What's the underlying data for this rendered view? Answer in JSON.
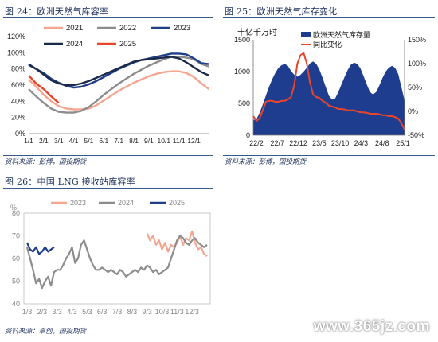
{
  "chart_data": [
    {
      "type": "line",
      "title": "图 24：欧洲天然气库容率",
      "source": "资料来源：彭博，国投期货",
      "x_ticks": [
        "1/1",
        "2/1",
        "3/1",
        "4/1",
        "5/1",
        "6/1",
        "7/1",
        "8/1",
        "9/1",
        "10/1",
        "11/1",
        "12/1"
      ],
      "y_ticks": [
        "0%",
        "20%",
        "40%",
        "60%",
        "80%",
        "100%",
        "120%"
      ],
      "ylim": [
        0,
        120
      ],
      "series": [
        {
          "name": "2021",
          "color": "#f4a690",
          "x": [
            0,
            0.5,
            1,
            1.5,
            2,
            2.5,
            3,
            3.5,
            4,
            4.5,
            5,
            5.5,
            6,
            6.5,
            7,
            7.5,
            8,
            8.5,
            9,
            9.5,
            10,
            10.5,
            11,
            11.5,
            12
          ],
          "y": [
            67,
            58,
            48,
            40,
            34,
            31,
            30,
            30,
            31,
            35,
            41,
            47,
            53,
            58,
            63,
            67,
            71,
            74,
            76,
            77,
            77,
            75,
            70,
            62,
            55
          ]
        },
        {
          "name": "2022",
          "color": "#8c8c8c",
          "x": [
            0,
            0.5,
            1,
            1.5,
            2,
            2.5,
            3,
            3.5,
            4,
            4.5,
            5,
            5.5,
            6,
            6.5,
            7,
            7.5,
            8,
            8.5,
            9,
            9.5,
            10,
            10.5,
            11,
            11.5,
            12
          ],
          "y": [
            55,
            46,
            38,
            31,
            27,
            26,
            26,
            28,
            33,
            40,
            48,
            55,
            62,
            68,
            74,
            79,
            84,
            88,
            92,
            95,
            95,
            94,
            92,
            86,
            83
          ]
        },
        {
          "name": "2023",
          "color": "#1f3f8a",
          "x": [
            0,
            0.5,
            1,
            1.5,
            2,
            2.5,
            3,
            3.5,
            4,
            4.5,
            5,
            5.5,
            6,
            6.5,
            7,
            7.5,
            8,
            8.5,
            9,
            9.5,
            10,
            10.5,
            11,
            11.5,
            12
          ],
          "y": [
            86,
            80,
            75,
            68,
            63,
            59,
            57,
            58,
            61,
            65,
            70,
            75,
            80,
            84,
            88,
            91,
            93,
            95,
            97,
            99,
            99,
            98,
            93,
            87,
            86
          ]
        },
        {
          "name": "2024",
          "color": "#1b2a4a",
          "x": [
            0,
            0.5,
            1,
            1.5,
            2,
            2.5,
            3,
            3.5,
            4,
            4.5,
            5,
            5.5,
            6,
            6.5,
            7,
            7.5,
            8,
            8.5,
            9,
            9.5,
            10,
            10.5,
            11,
            11.5,
            12
          ],
          "y": [
            85,
            80,
            73,
            66,
            62,
            60,
            60,
            62,
            65,
            69,
            73,
            77,
            81,
            85,
            89,
            91,
            92,
            93,
            94,
            95,
            93,
            88,
            82,
            76,
            72
          ]
        },
        {
          "name": "2025",
          "color": "#e8452c",
          "x": [
            0,
            0.5,
            1,
            1.5,
            2
          ],
          "y": [
            72,
            62,
            55,
            46,
            38
          ]
        }
      ]
    },
    {
      "type": "area",
      "title": "图 25：欧洲天然气库存变化",
      "source": "资料来源：彭博，国投期货",
      "unit_label": "十亿千万时",
      "x_ticks": [
        "22/2",
        "22/7",
        "22/12",
        "23/5",
        "23/10",
        "24/3",
        "24/8",
        "25/1"
      ],
      "y_left_ticks": [
        "0",
        "500",
        "1000",
        "1500"
      ],
      "y_right_ticks": [
        "-50%",
        "0%",
        "50%",
        "100%",
        "150%"
      ],
      "ylim_left": [
        0,
        1500
      ],
      "ylim_right": [
        -50,
        150
      ],
      "series": [
        {
          "name": "欧洲天然气库存量",
          "color": "#1f3d8f",
          "axis": "left",
          "x": [
            0,
            2,
            4,
            6,
            8,
            10,
            12,
            14,
            16,
            18,
            20,
            22,
            24,
            26,
            28,
            30,
            32,
            34,
            36,
            38,
            40,
            42,
            44,
            46,
            48,
            50,
            52,
            54,
            56,
            58,
            60,
            62,
            64,
            66,
            68,
            70,
            72,
            74,
            76,
            78,
            80,
            82,
            84,
            86,
            88,
            90,
            92,
            94,
            96
          ],
          "y": [
            240,
            250,
            350,
            480,
            620,
            760,
            880,
            980,
            1060,
            1100,
            1120,
            1090,
            1010,
            950,
            920,
            950,
            1000,
            1060,
            1130,
            1160,
            1120,
            1030,
            900,
            760,
            620,
            560,
            580,
            680,
            800,
            920,
            1030,
            1110,
            1140,
            1120,
            1050,
            930,
            800,
            680,
            640,
            680,
            780,
            900,
            1000,
            1060,
            1090,
            1060,
            960,
            760,
            540
          ]
        },
        {
          "name": "同比变化",
          "color": "#e8452c",
          "axis": "right",
          "x": [
            0,
            2,
            4,
            6,
            8,
            10,
            12,
            14,
            16,
            18,
            20,
            22,
            24,
            26,
            28,
            30,
            32,
            34,
            36,
            38,
            40,
            42,
            44,
            46,
            48,
            50,
            52,
            54,
            56,
            58,
            60,
            62,
            64,
            66,
            68,
            70,
            72,
            74,
            76,
            78,
            80,
            82,
            84,
            86,
            88,
            90,
            92,
            94,
            96
          ],
          "y": [
            -10,
            -20,
            -15,
            2,
            20,
            22,
            22,
            20,
            20,
            22,
            22,
            25,
            30,
            55,
            100,
            118,
            122,
            100,
            60,
            35,
            30,
            28,
            22,
            18,
            12,
            10,
            8,
            5,
            5,
            4,
            2,
            2,
            2,
            0,
            -2,
            -2,
            -3,
            -5,
            -5,
            -5,
            -6,
            -8,
            -8,
            -10,
            -10,
            -12,
            -15,
            -25,
            -38
          ]
        }
      ]
    },
    {
      "type": "line",
      "title": "图 26：中国 LNG 接收站库容率",
      "source": "资料来源：卓创，国投期货",
      "unit_label": "%",
      "x_ticks": [
        "1/3",
        "2/3",
        "3/3",
        "4/3",
        "5/3",
        "6/3",
        "7/3",
        "8/3",
        "9/3",
        "10/3",
        "11/3",
        "12/3"
      ],
      "y_ticks": [
        "40",
        "50",
        "60",
        "70",
        "80"
      ],
      "ylim": [
        40,
        80
      ],
      "series": [
        {
          "name": "2023",
          "color": "#f4a690",
          "x": [
            8.0,
            8.2,
            8.4,
            8.6,
            8.8,
            9.0,
            9.2,
            9.4,
            9.6,
            9.8,
            10.0,
            10.2,
            10.4,
            10.6,
            10.8,
            11.0,
            11.2,
            11.4,
            11.6,
            11.8,
            12.0
          ],
          "y": [
            71,
            68,
            70,
            66,
            68,
            64,
            67,
            63,
            66,
            65,
            67,
            70,
            66,
            69,
            68,
            72,
            67,
            64,
            65,
            62,
            61
          ]
        },
        {
          "name": "2024",
          "color": "#8c8c8c",
          "x": [
            0,
            0.2,
            0.4,
            0.6,
            0.8,
            1.0,
            1.2,
            1.4,
            1.6,
            1.8,
            2.0,
            2.2,
            2.4,
            2.6,
            2.8,
            3.0,
            3.2,
            3.4,
            3.6,
            3.8,
            4.0,
            4.2,
            4.4,
            4.6,
            4.8,
            5.0,
            5.2,
            5.4,
            5.6,
            5.8,
            6.0,
            6.2,
            6.4,
            6.6,
            6.8,
            7.0,
            7.2,
            7.4,
            7.6,
            7.8,
            8.0,
            8.2,
            8.4,
            8.6,
            8.8,
            9.0,
            9.2,
            9.4,
            9.6,
            9.8,
            10.0,
            10.2,
            10.4,
            10.6,
            10.8,
            11.0,
            11.2,
            11.4,
            11.6,
            11.8,
            12.0
          ],
          "y": [
            65,
            60,
            55,
            49,
            51,
            47,
            50,
            52,
            48,
            54,
            55,
            55,
            57,
            60,
            62,
            65,
            58,
            60,
            66,
            68,
            64,
            60,
            57,
            55,
            55,
            56,
            55,
            54,
            55,
            54,
            53,
            55,
            54,
            52,
            53,
            54,
            55,
            54,
            56,
            55,
            57,
            56,
            54,
            55,
            53,
            54,
            55,
            56,
            60,
            64,
            68,
            70,
            69,
            67,
            66,
            68,
            69,
            67,
            66,
            65,
            66
          ]
        },
        {
          "name": "2025",
          "color": "#1f3f8a",
          "x": [
            0,
            0.2,
            0.4,
            0.6,
            0.8,
            1.0,
            1.2,
            1.4,
            1.6,
            1.8
          ],
          "y": [
            67,
            64,
            63,
            65,
            62,
            63,
            65,
            63,
            64,
            65
          ]
        }
      ]
    }
  ],
  "watermark": "www.365jz.com"
}
